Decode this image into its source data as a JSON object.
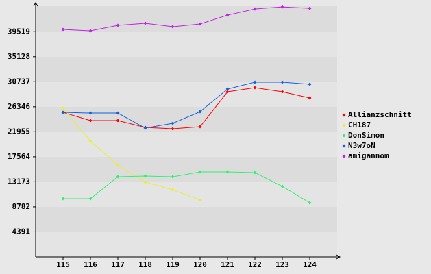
{
  "chart_data": {
    "type": "line",
    "x": [
      115,
      116,
      117,
      118,
      119,
      120,
      121,
      122,
      123,
      124
    ],
    "xlim": [
      114,
      125
    ],
    "xticks": [
      115,
      116,
      117,
      118,
      119,
      120,
      121,
      122,
      123,
      124
    ],
    "ylim": [
      0,
      44000
    ],
    "yticks": [
      4391,
      8782,
      13173,
      17564,
      21955,
      26346,
      30737,
      35128,
      39519
    ],
    "series": [
      {
        "name": "Allianzschnitt",
        "color": "#ff0000",
        "values": [
          25360,
          23920,
          23920,
          22720,
          22480,
          22840,
          28970,
          29690,
          28970,
          27890
        ]
      },
      {
        "name": "CH187",
        "color": "#e8f030",
        "values": [
          26080,
          20310,
          16110,
          13100,
          11780,
          9980,
          null,
          null,
          null,
          null
        ]
      },
      {
        "name": "DonSimon",
        "color": "#30f070",
        "values": [
          10220,
          10220,
          14060,
          14180,
          14060,
          14900,
          14900,
          14780,
          12380,
          9500
        ]
      },
      {
        "name": "N3w7oN",
        "color": "#1060e0",
        "values": [
          25360,
          25240,
          25240,
          22600,
          23440,
          25480,
          29450,
          30650,
          30650,
          30290
        ]
      },
      {
        "name": "amigannom",
        "color": "#c020e0",
        "values": [
          39910,
          39670,
          40630,
          40990,
          40390,
          40870,
          42430,
          43510,
          43870,
          43630
        ]
      }
    ]
  }
}
